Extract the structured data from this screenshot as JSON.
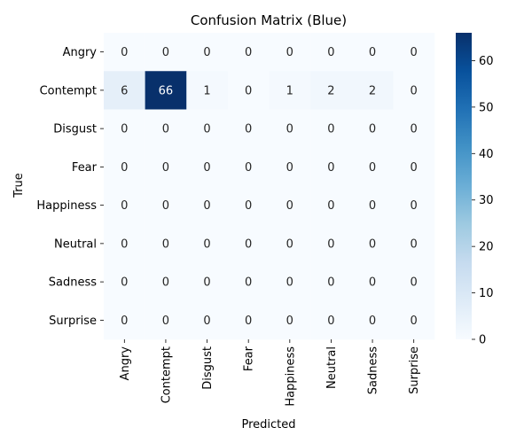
{
  "chart_data": {
    "type": "heatmap",
    "title": "Confusion Matrix (Blue)",
    "xlabel": "Predicted",
    "ylabel": "True",
    "x_categories": [
      "Angry",
      "Contempt",
      "Disgust",
      "Fear",
      "Happiness",
      "Neutral",
      "Sadness",
      "Surprise"
    ],
    "y_categories": [
      "Angry",
      "Contempt",
      "Disgust",
      "Fear",
      "Happiness",
      "Neutral",
      "Sadness",
      "Surprise"
    ],
    "values": [
      [
        0,
        0,
        0,
        0,
        0,
        0,
        0,
        0
      ],
      [
        6,
        66,
        1,
        0,
        1,
        2,
        2,
        0
      ],
      [
        0,
        0,
        0,
        0,
        0,
        0,
        0,
        0
      ],
      [
        0,
        0,
        0,
        0,
        0,
        0,
        0,
        0
      ],
      [
        0,
        0,
        0,
        0,
        0,
        0,
        0,
        0
      ],
      [
        0,
        0,
        0,
        0,
        0,
        0,
        0,
        0
      ],
      [
        0,
        0,
        0,
        0,
        0,
        0,
        0,
        0
      ],
      [
        0,
        0,
        0,
        0,
        0,
        0,
        0,
        0
      ]
    ],
    "colormap": "Blues",
    "color_range": [
      0,
      66
    ],
    "colorbar_ticks": [
      0,
      10,
      20,
      30,
      40,
      50,
      60
    ],
    "colors": {
      "low": "#f7fbff",
      "high": "#08306b"
    }
  }
}
